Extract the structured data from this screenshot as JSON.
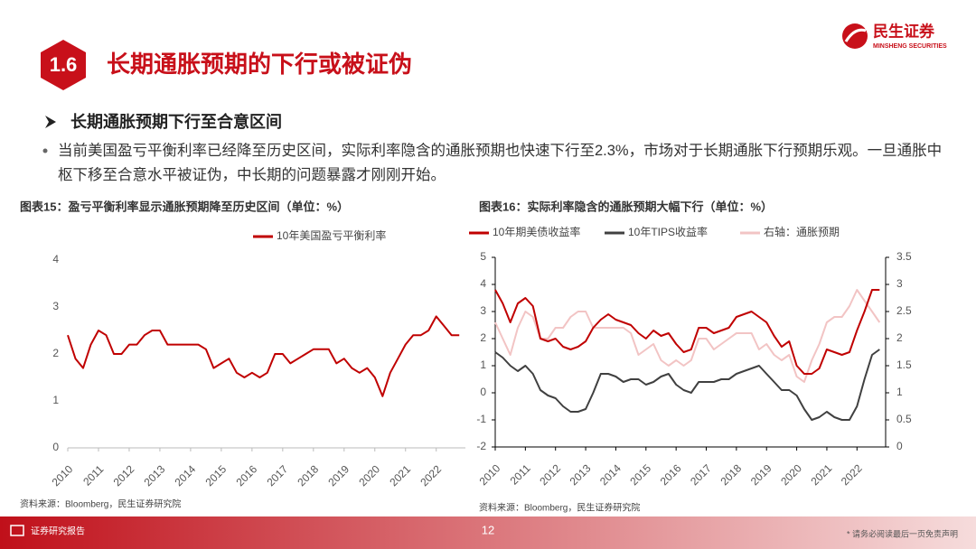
{
  "header": {
    "section": "1.6",
    "title": "长期通胀预期的下行或被证伪",
    "logo": "民生证券",
    "logo_en": "MINSHENG SECURITIES"
  },
  "subtitle": "长期通胀预期下行至合意区间",
  "bullet": "当前美国盈亏平衡利率已经降至历史区间，实际利率隐含的通胀预期也快速下行至2.3%，市场对于长期通胀下行预期乐观。一旦通胀中枢下移至合意水平被证伪，中长期的问题暴露才刚刚开始。",
  "chart_data": [
    {
      "type": "line",
      "title": "图表15：盈亏平衡利率显示通胀预期降至历史区间（单位：%）",
      "source": "资料来源：Bloomberg，民生证券研究院",
      "x": [
        2010,
        2010.25,
        2010.5,
        2010.75,
        2011,
        2011.25,
        2011.5,
        2011.75,
        2012,
        2012.25,
        2012.5,
        2012.75,
        2013,
        2013.25,
        2013.5,
        2013.75,
        2014,
        2014.25,
        2014.5,
        2014.75,
        2015,
        2015.25,
        2015.5,
        2015.75,
        2016,
        2016.25,
        2016.5,
        2016.75,
        2017,
        2017.25,
        2017.5,
        2017.75,
        2018,
        2018.25,
        2018.5,
        2018.75,
        2019,
        2019.25,
        2019.5,
        2019.75,
        2020,
        2020.25,
        2020.5,
        2020.75,
        2021,
        2021.25,
        2021.5,
        2021.75,
        2022,
        2022.25,
        2022.5,
        2022.75
      ],
      "series": [
        {
          "name": "10年美国盈亏平衡利率",
          "color": "#c00000",
          "values": [
            2.4,
            1.9,
            1.7,
            2.2,
            2.5,
            2.4,
            2.0,
            2.0,
            2.2,
            2.2,
            2.4,
            2.5,
            2.5,
            2.2,
            2.2,
            2.2,
            2.2,
            2.2,
            2.1,
            1.7,
            1.8,
            1.9,
            1.6,
            1.5,
            1.6,
            1.5,
            1.6,
            2.0,
            2.0,
            1.8,
            1.9,
            2.0,
            2.1,
            2.1,
            2.1,
            1.8,
            1.9,
            1.7,
            1.6,
            1.7,
            1.5,
            1.1,
            1.6,
            1.9,
            2.2,
            2.4,
            2.4,
            2.5,
            2.8,
            2.6,
            2.4,
            2.4
          ]
        }
      ],
      "xlim": [
        2010,
        2022.95
      ],
      "xticks": [
        2010,
        2011,
        2012,
        2013,
        2014,
        2015,
        2016,
        2017,
        2018,
        2019,
        2020,
        2021,
        2022
      ],
      "ylim": [
        0,
        4
      ],
      "yticks": [
        0,
        1,
        2,
        3,
        4
      ],
      "grid": false,
      "legend": "top"
    },
    {
      "type": "line",
      "title": "图表16：实际利率隐含的通胀预期大幅下行（单位：%）",
      "source": "资料来源：Bloomberg，民生证券研究院",
      "x": [
        2010,
        2010.25,
        2010.5,
        2010.75,
        2011,
        2011.25,
        2011.5,
        2011.75,
        2012,
        2012.25,
        2012.5,
        2012.75,
        2013,
        2013.25,
        2013.5,
        2013.75,
        2014,
        2014.25,
        2014.5,
        2014.75,
        2015,
        2015.25,
        2015.5,
        2015.75,
        2016,
        2016.25,
        2016.5,
        2016.75,
        2017,
        2017.25,
        2017.5,
        2017.75,
        2018,
        2018.25,
        2018.5,
        2018.75,
        2019,
        2019.25,
        2019.5,
        2019.75,
        2020,
        2020.25,
        2020.5,
        2020.75,
        2021,
        2021.25,
        2021.5,
        2021.75,
        2022,
        2022.25,
        2022.5,
        2022.75
      ],
      "series": [
        {
          "name": "10年期美债收益率",
          "color": "#c00000",
          "values": [
            3.8,
            3.3,
            2.6,
            3.3,
            3.5,
            3.2,
            2.0,
            1.9,
            2.0,
            1.7,
            1.6,
            1.7,
            1.9,
            2.4,
            2.7,
            2.9,
            2.7,
            2.6,
            2.5,
            2.2,
            2.0,
            2.3,
            2.1,
            2.2,
            1.8,
            1.5,
            1.6,
            2.4,
            2.4,
            2.2,
            2.3,
            2.4,
            2.8,
            2.9,
            3.0,
            2.8,
            2.6,
            2.1,
            1.7,
            1.9,
            1.0,
            0.7,
            0.7,
            0.9,
            1.6,
            1.5,
            1.4,
            1.5,
            2.3,
            3.0,
            3.8,
            3.8
          ]
        },
        {
          "name": "10年TIPS收益率",
          "color": "#404040",
          "values": [
            1.5,
            1.3,
            1.0,
            0.8,
            1.0,
            0.7,
            0.1,
            -0.1,
            -0.2,
            -0.5,
            -0.7,
            -0.7,
            -0.6,
            0.0,
            0.7,
            0.7,
            0.6,
            0.4,
            0.5,
            0.5,
            0.3,
            0.4,
            0.6,
            0.7,
            0.3,
            0.1,
            0.0,
            0.4,
            0.4,
            0.4,
            0.5,
            0.5,
            0.7,
            0.8,
            0.9,
            1.0,
            0.7,
            0.4,
            0.1,
            0.1,
            -0.1,
            -0.6,
            -1.0,
            -0.9,
            -0.7,
            -0.9,
            -1.0,
            -1.0,
            -0.5,
            0.5,
            1.4,
            1.6
          ]
        },
        {
          "name": "右轴：通胀预期",
          "color": "#f2c4c4",
          "axis": "y2",
          "values": [
            2.3,
            2.0,
            1.7,
            2.2,
            2.5,
            2.4,
            2.0,
            2.0,
            2.2,
            2.2,
            2.4,
            2.5,
            2.5,
            2.2,
            2.2,
            2.2,
            2.2,
            2.2,
            2.1,
            1.7,
            1.8,
            1.9,
            1.6,
            1.5,
            1.6,
            1.5,
            1.6,
            2.0,
            2.0,
            1.8,
            1.9,
            2.0,
            2.1,
            2.1,
            2.1,
            1.8,
            1.9,
            1.7,
            1.6,
            1.7,
            1.3,
            1.2,
            1.6,
            1.9,
            2.3,
            2.4,
            2.4,
            2.6,
            2.9,
            2.7,
            2.5,
            2.3
          ]
        }
      ],
      "xlim": [
        2010,
        2022.95
      ],
      "xticks": [
        2010,
        2011,
        2012,
        2013,
        2014,
        2015,
        2016,
        2017,
        2018,
        2019,
        2020,
        2021,
        2022
      ],
      "ylim": [
        -2,
        5
      ],
      "yticks": [
        -2,
        -1,
        0,
        1,
        2,
        3,
        4,
        5
      ],
      "y2lim": [
        0,
        3.5
      ],
      "y2ticks": [
        0,
        0.5,
        1,
        1.5,
        2,
        2.5,
        3,
        3.5
      ],
      "grid": false,
      "legend": "top"
    }
  ],
  "footer": {
    "left": "证券研究报告",
    "page": "12",
    "right": "* 请务必阅读最后一页免责声明"
  }
}
